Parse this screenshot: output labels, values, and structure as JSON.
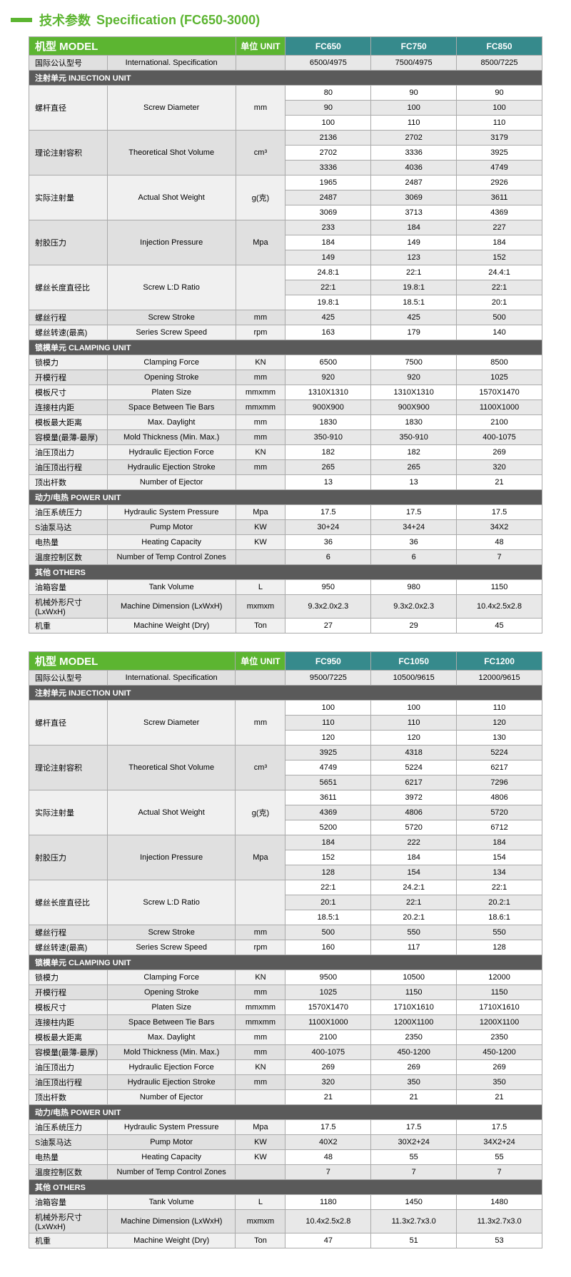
{
  "colors": {
    "green": "#5cb531",
    "teal": "#368a8c",
    "gray": "#5a5a5a",
    "border": "#aaaaaa",
    "altrow": "#e8e8e8",
    "labelbg": "#f0f0f0"
  },
  "title": {
    "cn": "技术参数",
    "en": "Specification (FC650-3000)"
  },
  "tables": [
    {
      "header": {
        "model": "机型 MODEL",
        "unit": "单位 UNIT",
        "cols": [
          "FC650",
          "FC750",
          "FC850"
        ]
      },
      "intl": {
        "cn": "国际公认型号",
        "en": "International. Specification",
        "vals": [
          "6500/4975",
          "7500/4975",
          "8500/7225"
        ]
      },
      "sections": [
        {
          "title": "注射单元  INJECTION UNIT",
          "rows": [
            {
              "cn": "螺杆直径",
              "en": "Screw Diameter",
              "unit": "mm",
              "span": 3,
              "vals": [
                [
                  "80",
                  "90",
                  "90"
                ],
                [
                  "90",
                  "100",
                  "100"
                ],
                [
                  "100",
                  "110",
                  "110"
                ]
              ]
            },
            {
              "cn": "理论注射容积",
              "en": "Theoretical Shot Volume",
              "unit": "cm³",
              "span": 3,
              "vals": [
                [
                  "2136",
                  "2702",
                  "3179"
                ],
                [
                  "2702",
                  "3336",
                  "3925"
                ],
                [
                  "3336",
                  "4036",
                  "4749"
                ]
              ]
            },
            {
              "cn": "实际注射量",
              "en": "Actual Shot Weight",
              "unit": "g(克)",
              "span": 3,
              "vals": [
                [
                  "1965",
                  "2487",
                  "2926"
                ],
                [
                  "2487",
                  "3069",
                  "3611"
                ],
                [
                  "3069",
                  "3713",
                  "4369"
                ]
              ]
            },
            {
              "cn": "射胶压力",
              "en": "Injection Pressure",
              "unit": "Mpa",
              "span": 3,
              "vals": [
                [
                  "233",
                  "184",
                  "227"
                ],
                [
                  "184",
                  "149",
                  "184"
                ],
                [
                  "149",
                  "123",
                  "152"
                ]
              ]
            },
            {
              "cn": "螺丝长度直径比",
              "en": "Screw L:D Ratio",
              "unit": "",
              "span": 3,
              "vals": [
                [
                  "24.8:1",
                  "22:1",
                  "24.4:1"
                ],
                [
                  "22:1",
                  "19.8:1",
                  "22:1"
                ],
                [
                  "19.8:1",
                  "18.5:1",
                  "20:1"
                ]
              ]
            },
            {
              "cn": "螺丝行程",
              "en": "Screw Stroke",
              "unit": "mm",
              "span": 1,
              "vals": [
                [
                  "425",
                  "425",
                  "500"
                ]
              ]
            },
            {
              "cn": "螺丝转速(最高)",
              "en": "Series Screw Speed",
              "unit": "rpm",
              "span": 1,
              "vals": [
                [
                  "163",
                  "179",
                  "140"
                ]
              ]
            }
          ]
        },
        {
          "title": "锁模单元  CLAMPING UNIT",
          "rows": [
            {
              "cn": "锁模力",
              "en": "Clamping Force",
              "unit": "KN",
              "span": 1,
              "vals": [
                [
                  "6500",
                  "7500",
                  "8500"
                ]
              ]
            },
            {
              "cn": "开模行程",
              "en": "Opening Stroke",
              "unit": "mm",
              "span": 1,
              "vals": [
                [
                  "920",
                  "920",
                  "1025"
                ]
              ]
            },
            {
              "cn": "模板尺寸",
              "en": "Platen Size",
              "unit": "mmxmm",
              "span": 1,
              "vals": [
                [
                  "1310X1310",
                  "1310X1310",
                  "1570X1470"
                ]
              ]
            },
            {
              "cn": "连接柱内距",
              "en": "Space Between Tie Bars",
              "unit": "mmxmm",
              "span": 1,
              "vals": [
                [
                  "900X900",
                  "900X900",
                  "1100X1000"
                ]
              ]
            },
            {
              "cn": "模板最大距离",
              "en": "Max. Daylight",
              "unit": "mm",
              "span": 1,
              "vals": [
                [
                  "1830",
                  "1830",
                  "2100"
                ]
              ]
            },
            {
              "cn": "容模量(最薄-最厚)",
              "en": "Mold Thickness (Min. Max.)",
              "unit": "mm",
              "span": 1,
              "vals": [
                [
                  "350-910",
                  "350-910",
                  "400-1075"
                ]
              ]
            },
            {
              "cn": "油压顶出力",
              "en": "Hydraulic Ejection Force",
              "unit": "KN",
              "span": 1,
              "vals": [
                [
                  "182",
                  "182",
                  "269"
                ]
              ]
            },
            {
              "cn": "油压顶出行程",
              "en": "Hydraulic Ejection Stroke",
              "unit": "mm",
              "span": 1,
              "vals": [
                [
                  "265",
                  "265",
                  "320"
                ]
              ]
            },
            {
              "cn": "顶出杆数",
              "en": "Number of Ejector",
              "unit": "",
              "span": 1,
              "vals": [
                [
                  "13",
                  "13",
                  "21"
                ]
              ]
            }
          ]
        },
        {
          "title": "动力/电热  POWER UNIT",
          "rows": [
            {
              "cn": "油压系统压力",
              "en": "Hydraulic System Pressure",
              "unit": "Mpa",
              "span": 1,
              "vals": [
                [
                  "17.5",
                  "17.5",
                  "17.5"
                ]
              ]
            },
            {
              "cn": "S油泵马达",
              "en": "Pump Motor",
              "unit": "KW",
              "span": 1,
              "vals": [
                [
                  "30+24",
                  "34+24",
                  "34X2"
                ]
              ]
            },
            {
              "cn": "电热量",
              "en": "Heating Capacity",
              "unit": "KW",
              "span": 1,
              "vals": [
                [
                  "36",
                  "36",
                  "48"
                ]
              ]
            },
            {
              "cn": "温度控制区数",
              "en": "Number of Temp Control Zones",
              "unit": "",
              "span": 1,
              "vals": [
                [
                  "6",
                  "6",
                  "7"
                ]
              ]
            }
          ]
        },
        {
          "title": "其他  OTHERS",
          "rows": [
            {
              "cn": "油箱容量",
              "en": "Tank Volume",
              "unit": "L",
              "span": 1,
              "vals": [
                [
                  "950",
                  "980",
                  "1150"
                ]
              ]
            },
            {
              "cn": "机械外形尺寸(LxWxH)",
              "en": "Machine Dimension (LxWxH)",
              "unit": "mxmxm",
              "span": 1,
              "vals": [
                [
                  "9.3x2.0x2.3",
                  "9.3x2.0x2.3",
                  "10.4x2.5x2.8"
                ]
              ]
            },
            {
              "cn": "机重",
              "en": "Machine Weight (Dry)",
              "unit": "Ton",
              "span": 1,
              "vals": [
                [
                  "27",
                  "29",
                  "45"
                ]
              ]
            }
          ]
        }
      ]
    },
    {
      "header": {
        "model": "机型 MODEL",
        "unit": "单位 UNIT",
        "cols": [
          "FC950",
          "FC1050",
          "FC1200"
        ]
      },
      "intl": {
        "cn": "国际公认型号",
        "en": "International. Specification",
        "vals": [
          "9500/7225",
          "10500/9615",
          "12000/9615"
        ]
      },
      "sections": [
        {
          "title": "注射单元  INJECTION UNIT",
          "rows": [
            {
              "cn": "螺杆直径",
              "en": "Screw Diameter",
              "unit": "mm",
              "span": 3,
              "vals": [
                [
                  "100",
                  "100",
                  "110"
                ],
                [
                  "110",
                  "110",
                  "120"
                ],
                [
                  "120",
                  "120",
                  "130"
                ]
              ]
            },
            {
              "cn": "理论注射容积",
              "en": "Theoretical Shot Volume",
              "unit": "cm³",
              "span": 3,
              "vals": [
                [
                  "3925",
                  "4318",
                  "5224"
                ],
                [
                  "4749",
                  "5224",
                  "6217"
                ],
                [
                  "5651",
                  "6217",
                  "7296"
                ]
              ]
            },
            {
              "cn": "实际注射量",
              "en": "Actual Shot Weight",
              "unit": "g(克)",
              "span": 3,
              "vals": [
                [
                  "3611",
                  "3972",
                  "4806"
                ],
                [
                  "4369",
                  "4806",
                  "5720"
                ],
                [
                  "5200",
                  "5720",
                  "6712"
                ]
              ]
            },
            {
              "cn": "射胶压力",
              "en": "Injection Pressure",
              "unit": "Mpa",
              "span": 3,
              "vals": [
                [
                  "184",
                  "222",
                  "184"
                ],
                [
                  "152",
                  "184",
                  "154"
                ],
                [
                  "128",
                  "154",
                  "134"
                ]
              ]
            },
            {
              "cn": "螺丝长度直径比",
              "en": "Screw L:D Ratio",
              "unit": "",
              "span": 3,
              "vals": [
                [
                  "22:1",
                  "24.2:1",
                  "22:1"
                ],
                [
                  "20:1",
                  "22:1",
                  "20.2:1"
                ],
                [
                  "18.5:1",
                  "20.2:1",
                  "18.6:1"
                ]
              ]
            },
            {
              "cn": "螺丝行程",
              "en": "Screw Stroke",
              "unit": "mm",
              "span": 1,
              "vals": [
                [
                  "500",
                  "550",
                  "550"
                ]
              ]
            },
            {
              "cn": "螺丝转速(最高)",
              "en": "Series Screw Speed",
              "unit": "rpm",
              "span": 1,
              "vals": [
                [
                  "160",
                  "117",
                  "128"
                ]
              ]
            }
          ]
        },
        {
          "title": "锁模单元  CLAMPING UNIT",
          "rows": [
            {
              "cn": "锁模力",
              "en": "Clamping Force",
              "unit": "KN",
              "span": 1,
              "vals": [
                [
                  "9500",
                  "10500",
                  "12000"
                ]
              ]
            },
            {
              "cn": "开模行程",
              "en": "Opening Stroke",
              "unit": "mm",
              "span": 1,
              "vals": [
                [
                  "1025",
                  "1150",
                  "1150"
                ]
              ]
            },
            {
              "cn": "模板尺寸",
              "en": "Platen Size",
              "unit": "mmxmm",
              "span": 1,
              "vals": [
                [
                  "1570X1470",
                  "1710X1610",
                  "1710X1610"
                ]
              ]
            },
            {
              "cn": "连接柱内距",
              "en": "Space Between Tie Bars",
              "unit": "mmxmm",
              "span": 1,
              "vals": [
                [
                  "1100X1000",
                  "1200X1100",
                  "1200X1100"
                ]
              ]
            },
            {
              "cn": "模板最大距离",
              "en": "Max. Daylight",
              "unit": "mm",
              "span": 1,
              "vals": [
                [
                  "2100",
                  "2350",
                  "2350"
                ]
              ]
            },
            {
              "cn": "容模量(最薄-最厚)",
              "en": "Mold Thickness (Min. Max.)",
              "unit": "mm",
              "span": 1,
              "vals": [
                [
                  "400-1075",
                  "450-1200",
                  "450-1200"
                ]
              ]
            },
            {
              "cn": "油压顶出力",
              "en": "Hydraulic Ejection Force",
              "unit": "KN",
              "span": 1,
              "vals": [
                [
                  "269",
                  "269",
                  "269"
                ]
              ]
            },
            {
              "cn": "油压顶出行程",
              "en": "Hydraulic Ejection Stroke",
              "unit": "mm",
              "span": 1,
              "vals": [
                [
                  "320",
                  "350",
                  "350"
                ]
              ]
            },
            {
              "cn": "顶出杆数",
              "en": "Number of Ejector",
              "unit": "",
              "span": 1,
              "vals": [
                [
                  "21",
                  "21",
                  "21"
                ]
              ]
            }
          ]
        },
        {
          "title": "动力/电热  POWER UNIT",
          "rows": [
            {
              "cn": "油压系统压力",
              "en": "Hydraulic System Pressure",
              "unit": "Mpa",
              "span": 1,
              "vals": [
                [
                  "17.5",
                  "17.5",
                  "17.5"
                ]
              ]
            },
            {
              "cn": "S油泵马达",
              "en": "Pump Motor",
              "unit": "KW",
              "span": 1,
              "vals": [
                [
                  "40X2",
                  "30X2+24",
                  "34X2+24"
                ]
              ]
            },
            {
              "cn": "电热量",
              "en": "Heating Capacity",
              "unit": "KW",
              "span": 1,
              "vals": [
                [
                  "48",
                  "55",
                  "55"
                ]
              ]
            },
            {
              "cn": "温度控制区数",
              "en": "Number of Temp Control Zones",
              "unit": "",
              "span": 1,
              "vals": [
                [
                  "7",
                  "7",
                  "7"
                ]
              ]
            }
          ]
        },
        {
          "title": "其他  OTHERS",
          "rows": [
            {
              "cn": "油箱容量",
              "en": "Tank Volume",
              "unit": "L",
              "span": 1,
              "vals": [
                [
                  "1180",
                  "1450",
                  "1480"
                ]
              ]
            },
            {
              "cn": "机械外形尺寸(LxWxH)",
              "en": "Machine Dimension (LxWxH)",
              "unit": "mxmxm",
              "span": 1,
              "vals": [
                [
                  "10.4x2.5x2.8",
                  "11.3x2.7x3.0",
                  "11.3x2.7x3.0"
                ]
              ]
            },
            {
              "cn": "机重",
              "en": "Machine Weight (Dry)",
              "unit": "Ton",
              "span": 1,
              "vals": [
                [
                  "47",
                  "51",
                  "53"
                ]
              ]
            }
          ]
        }
      ]
    }
  ]
}
